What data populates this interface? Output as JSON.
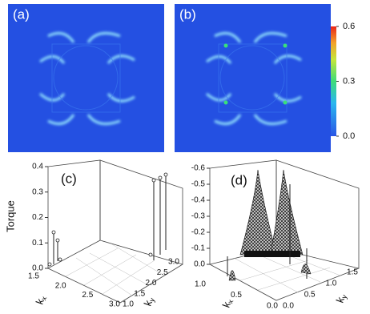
{
  "panels": [
    {
      "label": "(a)"
    },
    {
      "label": "(b)"
    },
    {
      "label": "(c)",
      "z_label": "Torque",
      "x_label": {
        "base": "k",
        "sub": "x"
      },
      "y_label": {
        "base": "k",
        "sub": "y"
      },
      "zticks": [
        {
          "value": 0,
          "label": "0.0"
        },
        0.1,
        0.2,
        0.3,
        0.4
      ],
      "xticks": [
        1.5,
        {
          "value": 2,
          "label": "2.0"
        },
        2.5,
        {
          "value": 3,
          "label": "3.0"
        }
      ],
      "yticks": [
        {
          "value": 1,
          "label": "1.0"
        },
        1.5,
        {
          "value": 2,
          "label": "2.0"
        },
        2.5,
        {
          "value": 3,
          "label": "3.0"
        }
      ]
    },
    {
      "label": "(d)",
      "x_label": {
        "base": "k",
        "sub": "x"
      },
      "y_label": {
        "base": "k",
        "sub": "y"
      },
      "zticks": [
        {
          "value": 0,
          "label": "0.0"
        },
        -0.1,
        -0.2,
        -0.3,
        -0.4,
        -0.5,
        -0.6
      ],
      "xticks": [
        {
          "value": 1,
          "label": "1.0"
        },
        0.5,
        {
          "value": 0,
          "label": "0.0"
        }
      ],
      "yticks": [
        {
          "value": 0,
          "label": "0.0"
        },
        0.5,
        {
          "value": 1,
          "label": "1.0"
        },
        1.5
      ]
    }
  ],
  "colorbar": {
    "lim": [
      0,
      0.6
    ],
    "ticks": [
      {
        "value": 0,
        "label": "0.0"
      },
      0.3,
      0.6
    ]
  }
}
